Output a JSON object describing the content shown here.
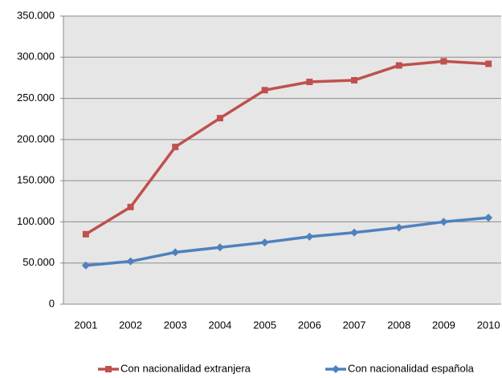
{
  "chart_data": {
    "type": "line",
    "categories": [
      "2001",
      "2002",
      "2003",
      "2004",
      "2005",
      "2006",
      "2007",
      "2008",
      "2009",
      "2010"
    ],
    "series": [
      {
        "name": "Con nacionalidad extranjera",
        "color": "#c0504d",
        "marker": "square",
        "values": [
          85000,
          118000,
          191000,
          226000,
          260000,
          270000,
          272000,
          290000,
          295000,
          292000
        ]
      },
      {
        "name": "Con nacionalidad española",
        "color": "#4f81bd",
        "marker": "diamond",
        "values": [
          47000,
          52000,
          63000,
          69000,
          75000,
          82000,
          87000,
          93000,
          100000,
          105000
        ]
      }
    ],
    "ylim": [
      0,
      350000
    ],
    "yticks": [
      0,
      {
        "value": 50000,
        "label": "50.000"
      },
      {
        "value": 100000,
        "label": "100.000"
      },
      {
        "value": 150000,
        "label": "150.000"
      },
      {
        "value": 200000,
        "label": "200.000"
      },
      {
        "value": 250000,
        "label": "250.000"
      },
      {
        "value": 300000,
        "label": "300.000"
      },
      {
        "value": 350000,
        "label": "350.000"
      }
    ],
    "grid": true,
    "legend": "bottom",
    "plot_background": "#e6e6e6"
  }
}
